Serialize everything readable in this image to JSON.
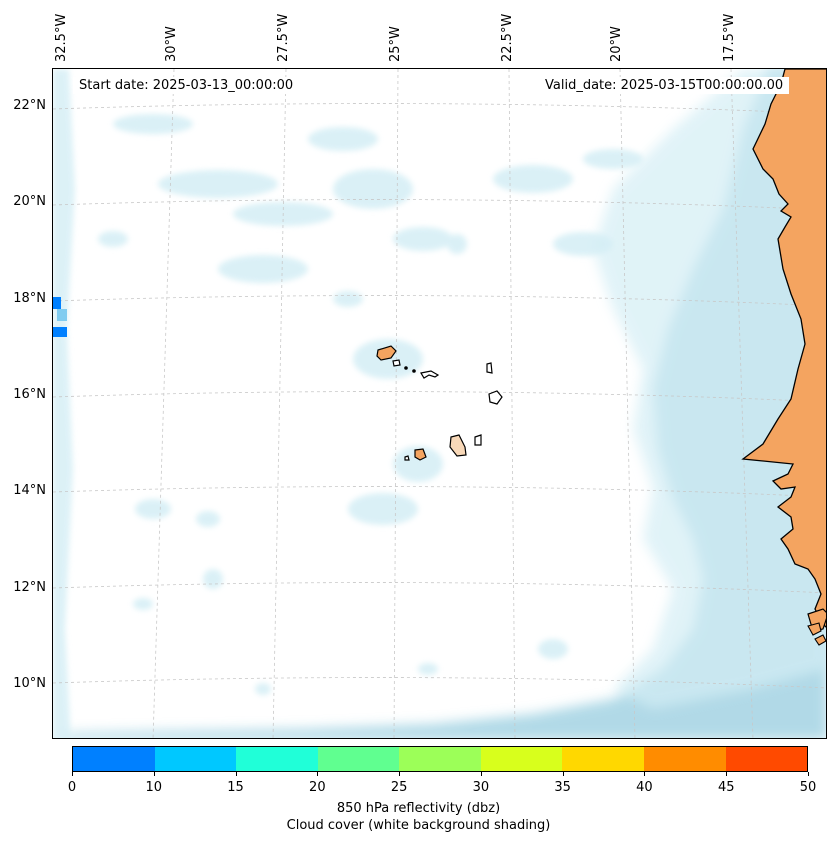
{
  "header": {
    "start_date": "Start date: 2025-03-13_00:00:00",
    "valid_date": "Valid_date: 2025-03-15T00:00:00.00"
  },
  "lon_labels": [
    "32.5°W",
    "30°W",
    "27.5°W",
    "25°W",
    "22.5°W",
    "20°W",
    "17.5°W"
  ],
  "lat_labels": [
    "22°N",
    "20°N",
    "18°N",
    "16°N",
    "14°N",
    "12°N",
    "10°N"
  ],
  "colorbar": {
    "ticks": [
      "0",
      "10",
      "15",
      "20",
      "25",
      "30",
      "35",
      "40",
      "45",
      "50"
    ],
    "colors": [
      "#0080ff",
      "#00c8ff",
      "#20ffd8",
      "#60ff90",
      "#9cff58",
      "#d8ff1c",
      "#ffd800",
      "#ff8c00",
      "#ff4a00"
    ],
    "label_line1": "850 hPa reflectivity (dbz)",
    "label_line2": "Cloud cover (white background shading)"
  },
  "colors": {
    "land": "#f4a460",
    "cloud": "#add8e6",
    "grid": "#c8c8c8"
  }
}
